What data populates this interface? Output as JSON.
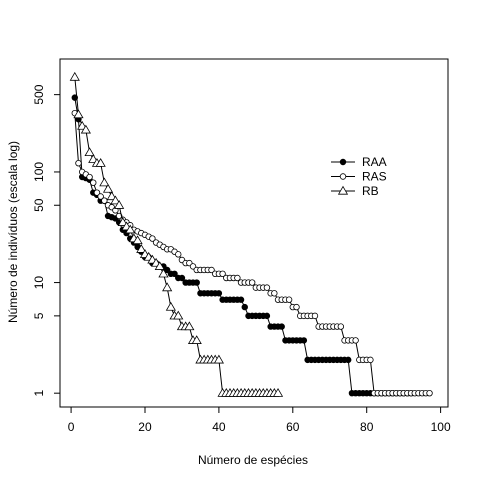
{
  "chart_data": {
    "type": "scatter",
    "xlabel": "Número de espécies",
    "ylabel": "Número de indivíduos (escala log)",
    "ylog": true,
    "xlim": [
      -3,
      102
    ],
    "ylim": [
      0.75,
      1050
    ],
    "xticks": [
      0,
      20,
      40,
      60,
      80,
      100
    ],
    "yticks": [
      1,
      5,
      10,
      50,
      100,
      500
    ],
    "legend_position": "upper-right",
    "legend": [
      "RAA",
      "RAS",
      "RB"
    ],
    "series": [
      {
        "name": "RAA",
        "marker": "filled-circle",
        "line": true,
        "points": [
          [
            1,
            470
          ],
          [
            2,
            300
          ],
          [
            3,
            90
          ],
          [
            4,
            88
          ],
          [
            5,
            85
          ],
          [
            6,
            65
          ],
          [
            7,
            62
          ],
          [
            8,
            55
          ],
          [
            9,
            55
          ],
          [
            10,
            40
          ],
          [
            11,
            39
          ],
          [
            12,
            38
          ],
          [
            13,
            35
          ],
          [
            14,
            30
          ],
          [
            15,
            28
          ],
          [
            16,
            25
          ],
          [
            17,
            23
          ],
          [
            18,
            21
          ],
          [
            19,
            19
          ],
          [
            20,
            17
          ],
          [
            21,
            17
          ],
          [
            22,
            15
          ],
          [
            23,
            15
          ],
          [
            24,
            14
          ],
          [
            25,
            14
          ],
          [
            26,
            13
          ],
          [
            27,
            12
          ],
          [
            28,
            12
          ],
          [
            29,
            11
          ],
          [
            30,
            11
          ],
          [
            31,
            10
          ],
          [
            32,
            10
          ],
          [
            33,
            10
          ],
          [
            34,
            10
          ],
          [
            35,
            8
          ],
          [
            36,
            8
          ],
          [
            37,
            8
          ],
          [
            38,
            8
          ],
          [
            39,
            8
          ],
          [
            40,
            8
          ],
          [
            41,
            7
          ],
          [
            42,
            7
          ],
          [
            43,
            7
          ],
          [
            44,
            7
          ],
          [
            45,
            7
          ],
          [
            46,
            7
          ],
          [
            47,
            6
          ],
          [
            48,
            5
          ],
          [
            49,
            5
          ],
          [
            50,
            5
          ],
          [
            51,
            5
          ],
          [
            52,
            5
          ],
          [
            53,
            5
          ],
          [
            54,
            4
          ],
          [
            55,
            4
          ],
          [
            56,
            4
          ],
          [
            57,
            4
          ],
          [
            58,
            3
          ],
          [
            59,
            3
          ],
          [
            60,
            3
          ],
          [
            61,
            3
          ],
          [
            62,
            3
          ],
          [
            63,
            3
          ],
          [
            64,
            2
          ],
          [
            65,
            2
          ],
          [
            66,
            2
          ],
          [
            67,
            2
          ],
          [
            68,
            2
          ],
          [
            69,
            2
          ],
          [
            70,
            2
          ],
          [
            71,
            2
          ],
          [
            72,
            2
          ],
          [
            73,
            2
          ],
          [
            74,
            2
          ],
          [
            75,
            2
          ],
          [
            76,
            1
          ],
          [
            77,
            1
          ],
          [
            78,
            1
          ],
          [
            79,
            1
          ],
          [
            80,
            1
          ],
          [
            81,
            1
          ],
          [
            82,
            1
          ],
          [
            83,
            1
          ],
          [
            84,
            1
          ],
          [
            85,
            1
          ],
          [
            86,
            1
          ],
          [
            87,
            1
          ],
          [
            88,
            1
          ],
          [
            89,
            1
          ],
          [
            90,
            1
          ],
          [
            91,
            1
          ],
          [
            92,
            1
          ]
        ]
      },
      {
        "name": "RAS",
        "marker": "open-circle",
        "line": true,
        "points": [
          [
            1,
            340
          ],
          [
            2,
            120
          ],
          [
            3,
            100
          ],
          [
            4,
            95
          ],
          [
            5,
            90
          ],
          [
            6,
            80
          ],
          [
            7,
            65
          ],
          [
            8,
            60
          ],
          [
            9,
            55
          ],
          [
            10,
            50
          ],
          [
            11,
            48
          ],
          [
            12,
            45
          ],
          [
            13,
            40
          ],
          [
            14,
            37
          ],
          [
            15,
            35
          ],
          [
            16,
            33
          ],
          [
            17,
            30
          ],
          [
            18,
            29
          ],
          [
            19,
            28
          ],
          [
            20,
            27
          ],
          [
            21,
            26
          ],
          [
            22,
            25
          ],
          [
            23,
            23
          ],
          [
            24,
            22
          ],
          [
            25,
            21
          ],
          [
            26,
            20
          ],
          [
            27,
            20
          ],
          [
            28,
            19
          ],
          [
            29,
            18
          ],
          [
            30,
            16
          ],
          [
            31,
            15
          ],
          [
            32,
            15
          ],
          [
            33,
            14
          ],
          [
            34,
            13
          ],
          [
            35,
            13
          ],
          [
            36,
            13
          ],
          [
            37,
            13
          ],
          [
            38,
            13
          ],
          [
            39,
            12
          ],
          [
            40,
            12
          ],
          [
            41,
            12
          ],
          [
            42,
            11
          ],
          [
            43,
            11
          ],
          [
            44,
            11
          ],
          [
            45,
            11
          ],
          [
            46,
            10
          ],
          [
            47,
            10
          ],
          [
            48,
            10
          ],
          [
            49,
            10
          ],
          [
            50,
            9
          ],
          [
            51,
            9
          ],
          [
            52,
            9
          ],
          [
            53,
            9
          ],
          [
            54,
            8
          ],
          [
            55,
            8
          ],
          [
            56,
            7
          ],
          [
            57,
            7
          ],
          [
            58,
            7
          ],
          [
            59,
            7
          ],
          [
            60,
            6
          ],
          [
            61,
            6
          ],
          [
            62,
            5
          ],
          [
            63,
            5
          ],
          [
            64,
            5
          ],
          [
            65,
            5
          ],
          [
            66,
            5
          ],
          [
            67,
            4
          ],
          [
            68,
            4
          ],
          [
            69,
            4
          ],
          [
            70,
            4
          ],
          [
            71,
            4
          ],
          [
            72,
            4
          ],
          [
            73,
            4
          ],
          [
            74,
            3
          ],
          [
            75,
            3
          ],
          [
            76,
            3
          ],
          [
            77,
            3
          ],
          [
            78,
            2
          ],
          [
            79,
            2
          ],
          [
            80,
            2
          ],
          [
            81,
            2
          ],
          [
            82,
            1
          ],
          [
            83,
            1
          ],
          [
            84,
            1
          ],
          [
            85,
            1
          ],
          [
            86,
            1
          ],
          [
            87,
            1
          ],
          [
            88,
            1
          ],
          [
            89,
            1
          ],
          [
            90,
            1
          ],
          [
            91,
            1
          ],
          [
            92,
            1
          ],
          [
            93,
            1
          ],
          [
            94,
            1
          ],
          [
            95,
            1
          ],
          [
            96,
            1
          ],
          [
            97,
            1
          ]
        ]
      },
      {
        "name": "RB",
        "marker": "open-triangle",
        "line": true,
        "points": [
          [
            1,
            720
          ],
          [
            2,
            330
          ],
          [
            3,
            260
          ],
          [
            4,
            240
          ],
          [
            5,
            150
          ],
          [
            6,
            130
          ],
          [
            7,
            120
          ],
          [
            8,
            120
          ],
          [
            9,
            80
          ],
          [
            10,
            70
          ],
          [
            11,
            60
          ],
          [
            12,
            55
          ],
          [
            13,
            50
          ],
          [
            14,
            35
          ],
          [
            15,
            32
          ],
          [
            16,
            30
          ],
          [
            17,
            25
          ],
          [
            18,
            24
          ],
          [
            19,
            20
          ],
          [
            20,
            18
          ],
          [
            21,
            17
          ],
          [
            22,
            16
          ],
          [
            23,
            15
          ],
          [
            24,
            14
          ],
          [
            25,
            12
          ],
          [
            26,
            9
          ],
          [
            27,
            6
          ],
          [
            28,
            5
          ],
          [
            29,
            5
          ],
          [
            30,
            4
          ],
          [
            31,
            4
          ],
          [
            32,
            4
          ],
          [
            33,
            3
          ],
          [
            34,
            3
          ],
          [
            35,
            2
          ],
          [
            36,
            2
          ],
          [
            37,
            2
          ],
          [
            38,
            2
          ],
          [
            39,
            2
          ],
          [
            40,
            2
          ],
          [
            41,
            1
          ],
          [
            42,
            1
          ],
          [
            43,
            1
          ],
          [
            44,
            1
          ],
          [
            45,
            1
          ],
          [
            46,
            1
          ],
          [
            47,
            1
          ],
          [
            48,
            1
          ],
          [
            49,
            1
          ],
          [
            50,
            1
          ],
          [
            51,
            1
          ],
          [
            52,
            1
          ],
          [
            53,
            1
          ],
          [
            54,
            1
          ],
          [
            55,
            1
          ],
          [
            56,
            1
          ]
        ]
      }
    ]
  }
}
